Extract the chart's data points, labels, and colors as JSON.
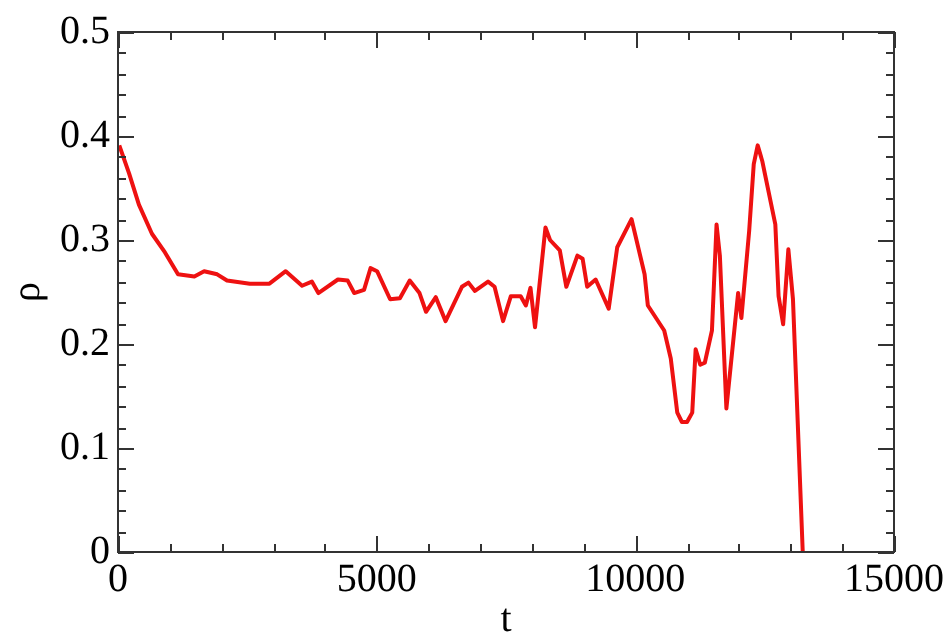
{
  "chart_data": {
    "type": "line",
    "xlabel": "t",
    "ylabel": "ρ",
    "x": [
      25,
      214,
      404,
      656,
      908,
      1160,
      1476,
      1665,
      1917,
      2107,
      2548,
      2927,
      3242,
      3558,
      3747,
      3873,
      4251,
      4440,
      4566,
      4756,
      4882,
      5008,
      5260,
      5449,
      5639,
      5828,
      5954,
      6143,
      6332,
      6648,
      6774,
      6900,
      7153,
      7279,
      7443,
      7594,
      7784,
      7884,
      7973,
      8061,
      8263,
      8351,
      8540,
      8666,
      8880,
      8981,
      9069,
      9233,
      9485,
      9650,
      9927,
      10179,
      10242,
      10558,
      10685,
      10811,
      10900,
      11000,
      11100,
      11166,
      11255,
      11343,
      11481,
      11570,
      11634,
      11760,
      11987,
      12050,
      12201,
      12289,
      12365,
      12453,
      12706,
      12769,
      12857,
      12958,
      13047,
      13236
    ],
    "series": [
      {
        "color": "#ee1111",
        "values": [
          0.391,
          0.364,
          0.334,
          0.306,
          0.288,
          0.267,
          0.265,
          0.27,
          0.267,
          0.261,
          0.258,
          0.258,
          0.27,
          0.256,
          0.26,
          0.249,
          0.262,
          0.261,
          0.249,
          0.252,
          0.273,
          0.27,
          0.243,
          0.244,
          0.261,
          0.249,
          0.231,
          0.245,
          0.222,
          0.255,
          0.259,
          0.251,
          0.26,
          0.255,
          0.222,
          0.246,
          0.246,
          0.237,
          0.254,
          0.216,
          0.312,
          0.3,
          0.29,
          0.255,
          0.285,
          0.282,
          0.255,
          0.262,
          0.234,
          0.293,
          0.32,
          0.267,
          0.237,
          0.213,
          0.186,
          0.134,
          0.125,
          0.125,
          0.134,
          0.195,
          0.18,
          0.182,
          0.213,
          0.315,
          0.285,
          0.138,
          0.249,
          0.225,
          0.309,
          0.373,
          0.391,
          0.376,
          0.315,
          0.246,
          0.219,
          0.291,
          0.243,
          0
        ]
      }
    ],
    "xlim": [
      0,
      15000
    ],
    "xticks": [
      0,
      {
        "value": 1000,
        "label": null
      },
      {
        "value": 2000,
        "label": null
      },
      {
        "value": 3000,
        "label": null
      },
      {
        "value": 4000,
        "label": null
      },
      5000,
      {
        "value": 6000,
        "label": null
      },
      {
        "value": 7000,
        "label": null
      },
      {
        "value": 8000,
        "label": null
      },
      {
        "value": 9000,
        "label": null
      },
      10000,
      {
        "value": 11000,
        "label": null
      },
      {
        "value": 12000,
        "label": null
      },
      {
        "value": 13000,
        "label": null
      },
      {
        "value": 14000,
        "label": null
      },
      15000
    ],
    "ylim": [
      0,
      0.5
    ],
    "yticks": [
      0,
      {
        "value": 0.02,
        "label": null
      },
      {
        "value": 0.04,
        "label": null
      },
      {
        "value": 0.06,
        "label": null
      },
      {
        "value": 0.08,
        "label": null
      },
      0.1,
      {
        "value": 0.12,
        "label": null
      },
      {
        "value": 0.14,
        "label": null
      },
      {
        "value": 0.16,
        "label": null
      },
      {
        "value": 0.18,
        "label": null
      },
      0.2,
      {
        "value": 0.22,
        "label": null
      },
      {
        "value": 0.24,
        "label": null
      },
      {
        "value": 0.26,
        "label": null
      },
      {
        "value": 0.28,
        "label": null
      },
      0.3,
      {
        "value": 0.32,
        "label": null
      },
      {
        "value": 0.34,
        "label": null
      },
      {
        "value": 0.36,
        "label": null
      },
      {
        "value": 0.38,
        "label": null
      },
      0.4,
      {
        "value": 0.42,
        "label": null
      },
      {
        "value": 0.44,
        "label": null
      },
      {
        "value": 0.46,
        "label": null
      },
      {
        "value": 0.48,
        "label": null
      },
      0.5
    ],
    "grid": false,
    "legend": false,
    "marker": "none",
    "line_style": "solid"
  }
}
